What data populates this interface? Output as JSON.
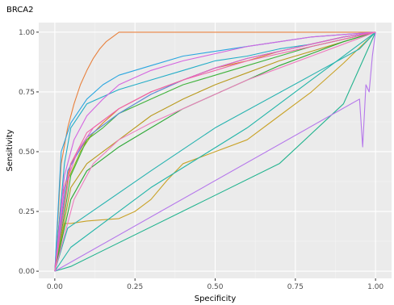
{
  "chart_data": {
    "type": "line",
    "title": "BRCA2",
    "xlabel": "Specificity",
    "ylabel": "Sensitivity",
    "xlim": [
      -0.05,
      1.05
    ],
    "ylim": [
      -0.03,
      1.04
    ],
    "xticks": [
      0.0,
      0.25,
      0.5,
      0.75,
      1.0
    ],
    "xtick_labels": [
      "0.00",
      "0.25",
      "0.50",
      "0.75",
      "1.00"
    ],
    "yticks": [
      0.0,
      0.25,
      0.5,
      0.75,
      1.0
    ],
    "ytick_labels": [
      "0.00",
      "0.25",
      "0.50",
      "0.75",
      "1.00"
    ],
    "grid": true,
    "legend": "none",
    "series": [
      {
        "color": "#E8803C",
        "x": [
          0.0,
          0.02,
          0.04,
          0.06,
          0.08,
          0.1,
          0.12,
          0.14,
          0.16,
          0.18,
          0.2,
          0.4,
          0.6,
          0.8,
          1.0
        ],
        "y": [
          0.0,
          0.45,
          0.6,
          0.7,
          0.78,
          0.84,
          0.89,
          0.93,
          0.96,
          0.98,
          1.0,
          1.0,
          1.0,
          1.0,
          1.0
        ]
      },
      {
        "color": "#D97F25",
        "x": [
          0.0,
          0.02,
          0.05,
          0.1,
          0.15,
          0.2,
          0.3,
          0.4,
          0.5,
          0.6,
          0.7,
          0.8,
          0.9,
          1.0
        ],
        "y": [
          0.0,
          0.3,
          0.45,
          0.55,
          0.62,
          0.68,
          0.75,
          0.8,
          0.85,
          0.88,
          0.92,
          0.95,
          0.98,
          1.0
        ]
      },
      {
        "color": "#C9A227",
        "x": [
          0.0,
          0.03,
          0.05,
          0.1,
          0.2,
          0.25,
          0.3,
          0.35,
          0.4,
          0.5,
          0.6,
          0.7,
          0.8,
          0.9,
          1.0
        ],
        "y": [
          0.0,
          0.2,
          0.2,
          0.21,
          0.22,
          0.25,
          0.3,
          0.38,
          0.45,
          0.5,
          0.55,
          0.65,
          0.75,
          0.87,
          1.0
        ]
      },
      {
        "color": "#B99A1E",
        "x": [
          0.0,
          0.05,
          0.1,
          0.2,
          0.3,
          0.4,
          0.5,
          0.6,
          0.7,
          0.8,
          0.9,
          1.0
        ],
        "y": [
          0.0,
          0.35,
          0.45,
          0.55,
          0.65,
          0.72,
          0.78,
          0.83,
          0.88,
          0.92,
          0.96,
          1.0
        ]
      },
      {
        "color": "#9DB21F",
        "x": [
          0.0,
          0.04,
          0.08,
          0.12,
          0.2,
          0.3,
          0.4,
          0.5,
          0.6,
          0.7,
          0.8,
          0.9,
          1.0
        ],
        "y": [
          0.0,
          0.38,
          0.5,
          0.58,
          0.66,
          0.74,
          0.8,
          0.85,
          0.89,
          0.92,
          0.95,
          0.98,
          1.0
        ]
      },
      {
        "color": "#3FB23B",
        "x": [
          0.0,
          0.05,
          0.1,
          0.15,
          0.2,
          0.3,
          0.4,
          0.5,
          0.6,
          0.7,
          0.8,
          0.9,
          1.0
        ],
        "y": [
          0.0,
          0.4,
          0.55,
          0.6,
          0.66,
          0.72,
          0.78,
          0.82,
          0.86,
          0.9,
          0.94,
          0.97,
          1.0
        ]
      },
      {
        "color": "#2EA836",
        "x": [
          0.0,
          0.05,
          0.1,
          0.2,
          0.3,
          0.4,
          0.5,
          0.6,
          0.7,
          0.8,
          0.9,
          1.0
        ],
        "y": [
          0.0,
          0.3,
          0.42,
          0.52,
          0.6,
          0.68,
          0.74,
          0.8,
          0.86,
          0.91,
          0.96,
          1.0
        ]
      },
      {
        "color": "#22B38E",
        "x": [
          0.0,
          0.05,
          0.7,
          0.9,
          1.0
        ],
        "y": [
          0.0,
          0.02,
          0.45,
          0.7,
          1.0
        ]
      },
      {
        "color": "#23B5A8",
        "x": [
          0.0,
          0.05,
          0.3,
          0.6,
          0.8,
          1.0
        ],
        "y": [
          0.0,
          0.1,
          0.35,
          0.6,
          0.8,
          1.0
        ]
      },
      {
        "color": "#27B3B0",
        "x": [
          0.0,
          0.04,
          0.3,
          0.5,
          0.8,
          0.95,
          1.0
        ],
        "y": [
          0.0,
          0.18,
          0.42,
          0.6,
          0.82,
          0.93,
          1.0
        ]
      },
      {
        "color": "#23ADC7",
        "x": [
          0.0,
          0.03,
          0.05,
          0.1,
          0.2,
          0.3,
          0.4,
          0.5,
          0.6,
          0.7,
          0.8,
          0.9,
          1.0
        ],
        "y": [
          0.0,
          0.45,
          0.6,
          0.7,
          0.76,
          0.8,
          0.84,
          0.88,
          0.9,
          0.93,
          0.95,
          0.98,
          1.0
        ]
      },
      {
        "color": "#2AA6E0",
        "x": [
          0.0,
          0.02,
          0.05,
          0.1,
          0.15,
          0.2,
          0.3,
          0.4,
          0.5,
          0.6,
          0.7,
          0.8,
          0.9,
          1.0
        ],
        "y": [
          0.0,
          0.5,
          0.62,
          0.72,
          0.78,
          0.82,
          0.86,
          0.9,
          0.92,
          0.94,
          0.96,
          0.98,
          0.99,
          1.0
        ]
      },
      {
        "color": "#5C8CEB",
        "x": [
          0.0,
          0.04,
          0.1,
          0.2,
          0.3,
          0.4,
          0.5,
          0.6,
          0.7,
          0.8,
          0.9,
          1.0
        ],
        "y": [
          0.0,
          0.42,
          0.56,
          0.66,
          0.74,
          0.8,
          0.85,
          0.89,
          0.92,
          0.95,
          0.98,
          1.0
        ]
      },
      {
        "color": "#B577EB",
        "x": [
          0.0,
          0.95,
          0.96,
          0.97,
          0.98,
          0.99,
          1.0
        ],
        "y": [
          0.0,
          0.72,
          0.52,
          0.78,
          0.75,
          0.9,
          1.0
        ]
      },
      {
        "color": "#D465E0",
        "x": [
          0.0,
          0.03,
          0.06,
          0.1,
          0.15,
          0.2,
          0.3,
          0.4,
          0.5,
          0.6,
          0.7,
          0.8,
          0.9,
          1.0
        ],
        "y": [
          0.0,
          0.4,
          0.55,
          0.65,
          0.72,
          0.78,
          0.84,
          0.88,
          0.91,
          0.94,
          0.96,
          0.98,
          0.99,
          1.0
        ]
      },
      {
        "color": "#EB5FC8",
        "x": [
          0.0,
          0.03,
          0.07,
          0.12,
          0.2,
          0.3,
          0.4,
          0.5,
          0.6,
          0.7,
          0.8,
          0.9,
          1.0
        ],
        "y": [
          0.0,
          0.35,
          0.5,
          0.6,
          0.68,
          0.75,
          0.8,
          0.85,
          0.89,
          0.92,
          0.95,
          0.98,
          1.0
        ]
      },
      {
        "color": "#F066A6",
        "x": [
          0.0,
          0.05,
          0.1,
          0.2,
          0.3,
          0.4,
          0.5,
          0.6,
          0.7,
          0.8,
          0.9,
          1.0
        ],
        "y": [
          0.0,
          0.45,
          0.58,
          0.68,
          0.75,
          0.8,
          0.84,
          0.88,
          0.91,
          0.94,
          0.97,
          1.0
        ]
      },
      {
        "color": "#EE7DBE",
        "x": [
          0.0,
          0.06,
          0.12,
          0.2,
          0.3,
          0.4,
          0.5,
          0.6,
          0.7,
          0.8,
          0.9,
          1.0
        ],
        "y": [
          0.0,
          0.3,
          0.45,
          0.55,
          0.62,
          0.68,
          0.74,
          0.8,
          0.85,
          0.9,
          0.95,
          1.0
        ]
      }
    ]
  }
}
